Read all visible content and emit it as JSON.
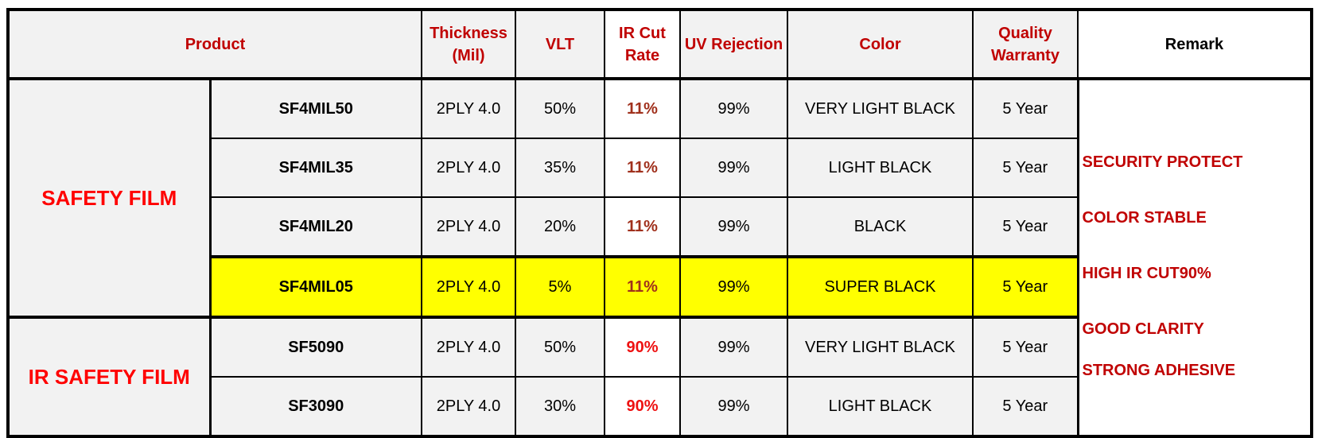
{
  "header": {
    "product": "Product",
    "thickness": "Thickness (Mil)",
    "vlt": "VLT",
    "ir_cut": "IR Cut Rate",
    "uv": "UV Rejection",
    "color": "Color",
    "warranty": "Quality Warranty",
    "remark": "Remark"
  },
  "groups": [
    {
      "name": "SAFETY FILM",
      "rows": [
        {
          "model": "SF4MIL50",
          "thickness": "2PLY 4.0",
          "vlt": "50%",
          "ir_cut": "11%",
          "uv": "99%",
          "color": "VERY LIGHT BLACK",
          "warranty": "5 Year"
        },
        {
          "model": "SF4MIL35",
          "thickness": "2PLY 4.0",
          "vlt": "35%",
          "ir_cut": "11%",
          "uv": "99%",
          "color": "LIGHT BLACK",
          "warranty": "5 Year"
        },
        {
          "model": "SF4MIL20",
          "thickness": "2PLY 4.0",
          "vlt": "20%",
          "ir_cut": "11%",
          "uv": "99%",
          "color": "BLACK",
          "warranty": "5 Year"
        },
        {
          "model": "SF4MIL05",
          "thickness": "2PLY 4.0",
          "vlt": "5%",
          "ir_cut": "11%",
          "uv": "99%",
          "color": "SUPER BLACK",
          "warranty": "5 Year",
          "highlight": true
        }
      ]
    },
    {
      "name": "IR SAFETY FILM",
      "rows": [
        {
          "model": "SF5090",
          "thickness": "2PLY 4.0",
          "vlt": "50%",
          "ir_cut": "90%",
          "uv": "99%",
          "color": "VERY LIGHT BLACK",
          "warranty": "5 Year"
        },
        {
          "model": "SF3090",
          "thickness": "2PLY 4.0",
          "vlt": "30%",
          "ir_cut": "90%",
          "uv": "99%",
          "color": "LIGHT BLACK",
          "warranty": "5 Year"
        }
      ]
    }
  ],
  "remarks": [
    "SECURITY PROTECT",
    "COLOR STABLE",
    "HIGH IR CUT90%",
    "GOOD CLARITY",
    "STRONG ADHESIVE"
  ]
}
